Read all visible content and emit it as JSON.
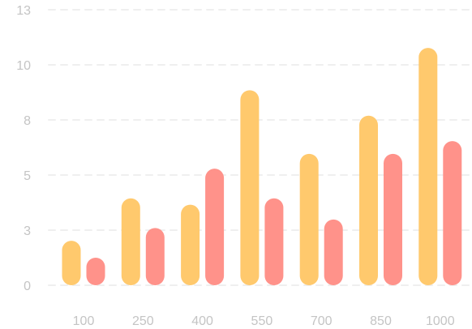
{
  "chart_data": {
    "type": "bar",
    "categories": [
      "100",
      "250",
      "400",
      "550",
      "700",
      "850",
      "1000"
    ],
    "series": [
      {
        "values": [
          2.1,
          4.1,
          3.8,
          9.2,
          6.2,
          8.0,
          11.2
        ],
        "color": "#ffc96d"
      },
      {
        "values": [
          1.3,
          2.7,
          5.5,
          4.1,
          3.1,
          6.2,
          6.8
        ],
        "color": "#ff928a"
      }
    ],
    "y_ticks": [
      "0",
      "3",
      "5",
      "8",
      "10",
      "13"
    ],
    "ylim": [
      0,
      13
    ],
    "title": "",
    "xlabel": "",
    "ylabel": "",
    "grid": true,
    "legend": "none"
  }
}
